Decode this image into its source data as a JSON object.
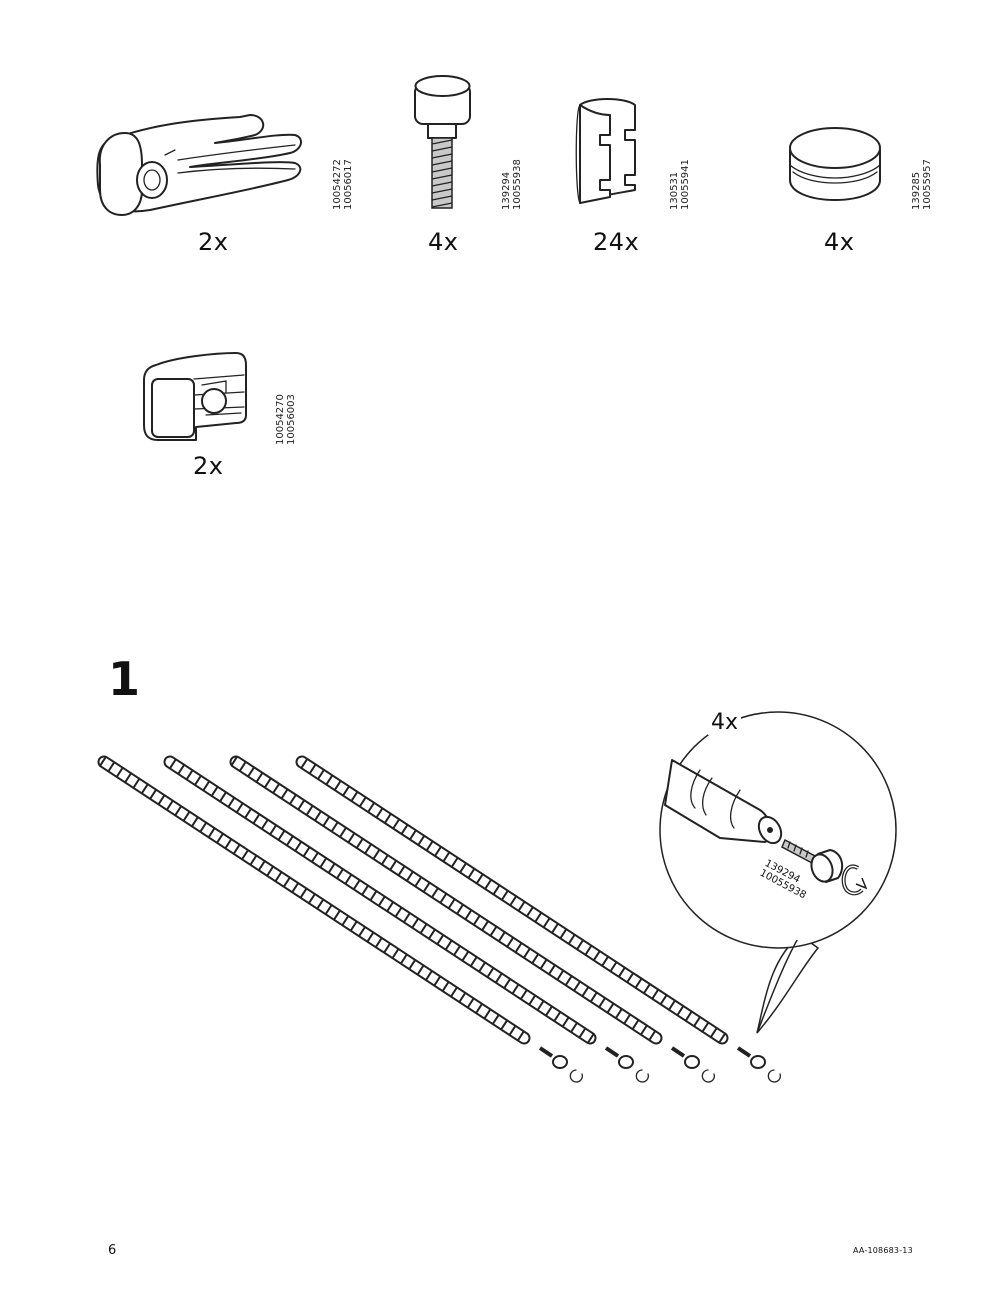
{
  "parts": [
    {
      "qty": "2x",
      "part_numbers": [
        "10054272",
        "10056017"
      ],
      "icon": "clamp-icon"
    },
    {
      "qty": "4x",
      "part_numbers": [
        "139294",
        "10055938"
      ],
      "icon": "screw-knob-icon"
    },
    {
      "qty": "24x",
      "part_numbers": [
        "130531",
        "10055941"
      ],
      "icon": "sleeve-clip-icon"
    },
    {
      "qty": "4x",
      "part_numbers": [
        "139285",
        "10055957"
      ],
      "icon": "round-cap-icon"
    },
    {
      "qty": "2x",
      "part_numbers": [
        "10054270",
        "10056003"
      ],
      "icon": "bracket-clip-icon"
    }
  ],
  "step": {
    "number": "1",
    "detail_qty": "4x",
    "detail_part_numbers": [
      "139294",
      "10055938"
    ]
  },
  "footer": {
    "page_number": "6",
    "doc_code": "AA-108683-13"
  }
}
